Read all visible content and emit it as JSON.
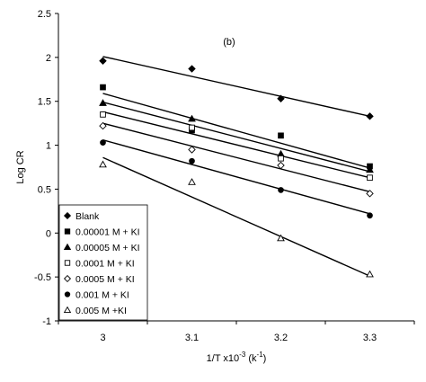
{
  "chart_data": {
    "type": "scatter",
    "annotation": "(b)",
    "xlabel": {
      "main": "1/T x10",
      "exponent": "-3",
      "unit_open": " (k",
      "unit_exponent": "-1",
      "unit_close": ")"
    },
    "ylabel": "Log CR",
    "xlim": [
      2.95,
      3.35
    ],
    "ylim": [
      -1,
      2.5
    ],
    "x_ticks": [
      3,
      3.1,
      3.2,
      3.3
    ],
    "x_tick_labels": [
      "3",
      "3.1",
      "3.2",
      "3.3"
    ],
    "y_ticks": [
      -1,
      -0.5,
      0,
      0.5,
      1,
      1.5,
      2,
      2.5
    ],
    "y_tick_labels": [
      "-1",
      "-0.5",
      "0",
      "0.5",
      "1",
      "1.5",
      "2",
      "2.5"
    ],
    "grid": false,
    "legend_position": "bottom-left",
    "x": [
      3,
      3.1,
      3.2,
      3.3
    ],
    "series": [
      {
        "name": "Blank",
        "marker": "diamond-filled",
        "values": [
          1.96,
          1.87,
          1.53,
          1.33
        ],
        "fit": [
          2.01,
          1.33
        ]
      },
      {
        "name": "0.00001 M + KI",
        "marker": "square-filled",
        "values": [
          1.66,
          1.17,
          1.11,
          0.76
        ],
        "fit": [
          1.59,
          0.74
        ]
      },
      {
        "name": "0.00005 M + KI",
        "marker": "triangle-filled",
        "values": [
          1.48,
          1.3,
          0.9,
          0.72
        ],
        "fit": [
          1.49,
          0.7
        ]
      },
      {
        "name": "0.0001 M + KI",
        "marker": "square-open",
        "values": [
          1.35,
          1.2,
          0.85,
          0.63
        ],
        "fit": [
          1.38,
          0.63
        ]
      },
      {
        "name": "0.0005 M + KI",
        "marker": "diamond-open",
        "values": [
          1.22,
          0.95,
          0.77,
          0.45
        ],
        "fit": [
          1.25,
          0.47
        ]
      },
      {
        "name": "0.001 M + KI",
        "marker": "circle-filled",
        "values": [
          1.03,
          0.82,
          0.49,
          0.2
        ],
        "fit": [
          1.06,
          0.22
        ]
      },
      {
        "name": "0.005 M +KI",
        "marker": "triangle-open",
        "values": [
          0.78,
          0.58,
          -0.06,
          -0.47
        ],
        "fit": [
          0.86,
          -0.49
        ]
      }
    ]
  }
}
